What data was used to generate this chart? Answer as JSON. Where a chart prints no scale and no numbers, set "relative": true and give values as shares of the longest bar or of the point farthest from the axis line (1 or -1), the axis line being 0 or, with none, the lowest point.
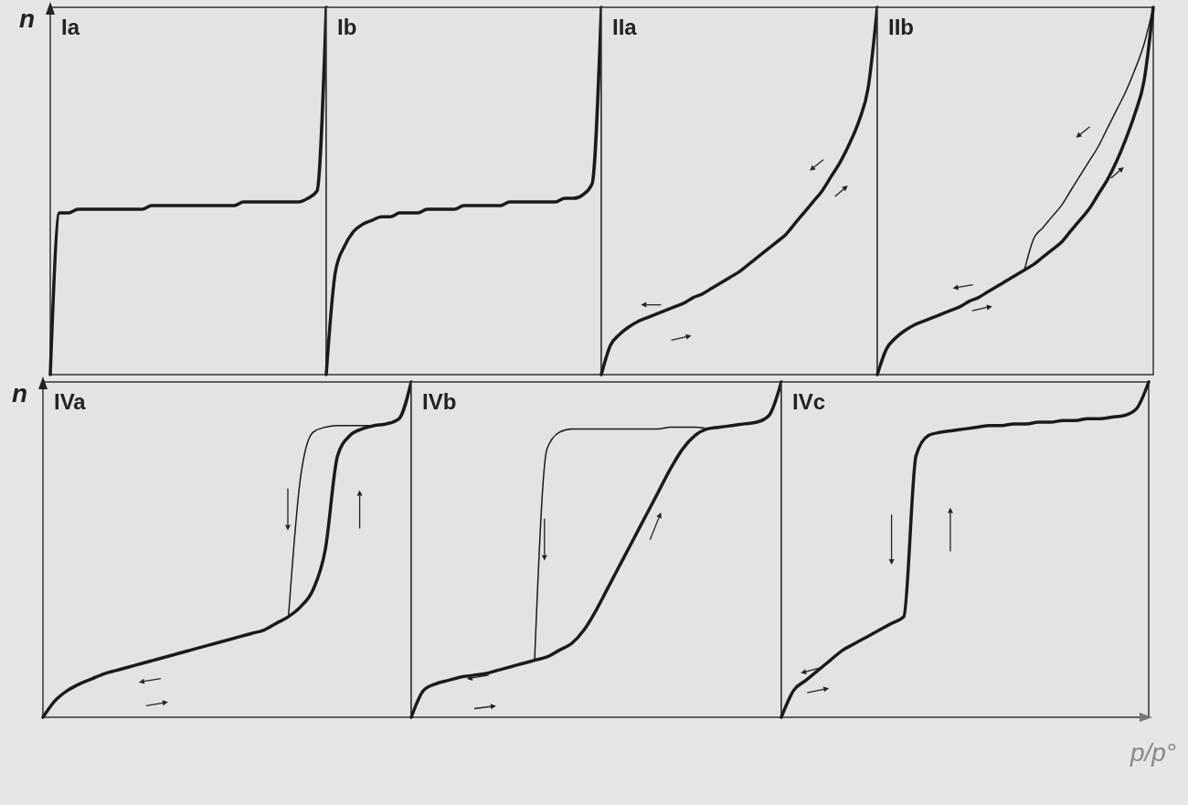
{
  "chart_data": [
    {
      "type": "line",
      "title": "Ia",
      "ylabel": "n",
      "relative": true,
      "categories": [
        null,
        null,
        null,
        null,
        null,
        null,
        null,
        null,
        null,
        null,
        null,
        null,
        null,
        null,
        null,
        null,
        null,
        null,
        null,
        null,
        null,
        null,
        null,
        null,
        null,
        null,
        null,
        null,
        null,
        null,
        null
      ],
      "series": [
        {
          "color": "#1a1a1a",
          "values": [
            0,
            0.44,
            0.44,
            0.45,
            0.45,
            0.45,
            0.45,
            0.45,
            0.45,
            0.45,
            0.45,
            0.46,
            0.46,
            0.46,
            0.46,
            0.46,
            0.46,
            0.46,
            0.46,
            0.46,
            0.46,
            0.47,
            0.47,
            0.47,
            0.47,
            0.47,
            0.47,
            0.47,
            0.48,
            0.5,
            1
          ]
        }
      ]
    },
    {
      "type": "line",
      "title": "Ib",
      "relative": true,
      "categories": [
        null,
        null,
        null,
        null,
        null,
        null,
        null,
        null,
        null,
        null,
        null,
        null,
        null,
        null,
        null,
        null,
        null,
        null,
        null,
        null,
        null,
        null,
        null,
        null,
        null,
        null,
        null,
        null,
        null,
        null,
        null
      ],
      "series": [
        {
          "color": "#1a1a1a",
          "values": [
            0,
            0.28,
            0.35,
            0.39,
            0.41,
            0.42,
            0.43,
            0.43,
            0.44,
            0.44,
            0.44,
            0.45,
            0.45,
            0.45,
            0.45,
            0.46,
            0.46,
            0.46,
            0.46,
            0.46,
            0.47,
            0.47,
            0.47,
            0.47,
            0.47,
            0.47,
            0.48,
            0.48,
            0.49,
            0.52,
            1
          ]
        }
      ]
    },
    {
      "type": "line",
      "title": "IIa",
      "relative": true,
      "categories": [
        null,
        null,
        null,
        null,
        null,
        null,
        null,
        null,
        null,
        null,
        null,
        null,
        null,
        null,
        null,
        null,
        null,
        null,
        null,
        null,
        null,
        null,
        null,
        null,
        null,
        null,
        null,
        null,
        null,
        null,
        null
      ],
      "series": [
        {
          "color": "#1a1a1a",
          "values": [
            0,
            0.08,
            0.11,
            0.13,
            0.145,
            0.155,
            0.165,
            0.175,
            0.185,
            0.195,
            0.21,
            0.22,
            0.235,
            0.25,
            0.265,
            0.28,
            0.3,
            0.32,
            0.34,
            0.36,
            0.38,
            0.41,
            0.44,
            0.47,
            0.5,
            0.54,
            0.58,
            0.63,
            0.69,
            0.78,
            1
          ]
        }
      ]
    },
    {
      "type": "line",
      "title": "IIb",
      "relative": true,
      "categories": [
        null,
        null,
        null,
        null,
        null,
        null,
        null,
        null,
        null,
        null,
        null,
        null,
        null,
        null,
        null,
        null,
        null,
        null,
        null,
        null,
        null,
        null,
        null,
        null,
        null,
        null,
        null,
        null,
        null,
        null,
        null
      ],
      "series": [
        {
          "color": "#1a1a1a",
          "values": [
            0,
            0.07,
            0.1,
            0.12,
            0.135,
            0.145,
            0.155,
            0.165,
            0.175,
            0.185,
            0.2,
            0.21,
            0.225,
            0.24,
            0.255,
            0.27,
            0.285,
            0.3,
            0.32,
            0.34,
            0.36,
            0.39,
            0.42,
            0.45,
            0.49,
            0.53,
            0.58,
            0.64,
            0.71,
            0.8,
            1
          ]
        },
        {
          "color": "#1a1a1a",
          "values": [
            null,
            null,
            null,
            null,
            null,
            null,
            null,
            null,
            null,
            null,
            null,
            null,
            null,
            null,
            null,
            null,
            0.285,
            0.37,
            0.4,
            0.43,
            0.46,
            0.5,
            0.54,
            0.58,
            0.62,
            0.67,
            0.72,
            0.77,
            0.83,
            0.9,
            1
          ]
        }
      ]
    },
    {
      "type": "line",
      "title": "IVa",
      "ylabel": "n",
      "relative": true,
      "categories": [
        null,
        null,
        null,
        null,
        null,
        null,
        null,
        null,
        null,
        null,
        null,
        null,
        null,
        null,
        null,
        null,
        null,
        null,
        null,
        null,
        null,
        null,
        null,
        null,
        null,
        null,
        null,
        null,
        null,
        null,
        null
      ],
      "series": [
        {
          "color": "#1a1a1a",
          "values": [
            0,
            0.05,
            0.08,
            0.1,
            0.115,
            0.13,
            0.14,
            0.15,
            0.16,
            0.17,
            0.18,
            0.19,
            0.2,
            0.21,
            0.22,
            0.23,
            0.24,
            0.25,
            0.26,
            0.28,
            0.3,
            0.33,
            0.38,
            0.5,
            0.78,
            0.84,
            0.86,
            0.87,
            0.875,
            0.89,
            1
          ]
        },
        {
          "color": "#1a1a1a",
          "values": [
            null,
            null,
            null,
            null,
            null,
            null,
            null,
            null,
            null,
            null,
            null,
            null,
            null,
            null,
            null,
            null,
            null,
            null,
            null,
            null,
            0.3,
            0.72,
            0.85,
            0.865,
            0.87,
            0.87,
            0.87,
            0.87,
            null,
            null,
            null
          ]
        }
      ]
    },
    {
      "type": "line",
      "title": "IVb",
      "relative": true,
      "categories": [
        null,
        null,
        null,
        null,
        null,
        null,
        null,
        null,
        null,
        null,
        null,
        null,
        null,
        null,
        null,
        null,
        null,
        null,
        null,
        null,
        null,
        null,
        null,
        null,
        null,
        null,
        null,
        null,
        null,
        null,
        null
      ],
      "series": [
        {
          "color": "#1a1a1a",
          "values": [
            0,
            0.08,
            0.1,
            0.11,
            0.12,
            0.125,
            0.13,
            0.14,
            0.15,
            0.16,
            0.17,
            0.18,
            0.2,
            0.22,
            0.26,
            0.32,
            0.39,
            0.46,
            0.53,
            0.6,
            0.67,
            0.74,
            0.8,
            0.84,
            0.86,
            0.865,
            0.87,
            0.875,
            0.88,
            0.9,
            1
          ]
        },
        {
          "color": "#1a1a1a",
          "values": [
            null,
            null,
            null,
            null,
            null,
            null,
            null,
            null,
            null,
            null,
            0.17,
            0.8,
            0.85,
            0.86,
            0.86,
            0.86,
            0.86,
            0.86,
            0.86,
            0.86,
            0.86,
            0.865,
            0.865,
            0.865,
            0.86,
            null,
            null,
            null,
            null,
            null,
            null
          ]
        }
      ]
    },
    {
      "type": "line",
      "title": "IVc",
      "xlabel": "p/p°",
      "relative": true,
      "categories": [
        null,
        null,
        null,
        null,
        null,
        null,
        null,
        null,
        null,
        null,
        null,
        null,
        null,
        null,
        null,
        null,
        null,
        null,
        null,
        null,
        null,
        null,
        null,
        null,
        null,
        null,
        null,
        null,
        null,
        null,
        null
      ],
      "series": [
        {
          "color": "#1a1a1a",
          "values": [
            0,
            0.08,
            0.11,
            0.14,
            0.17,
            0.2,
            0.22,
            0.24,
            0.26,
            0.28,
            0.3,
            0.78,
            0.84,
            0.85,
            0.855,
            0.86,
            0.865,
            0.87,
            0.87,
            0.875,
            0.875,
            0.88,
            0.88,
            0.885,
            0.885,
            0.89,
            0.89,
            0.895,
            0.9,
            0.92,
            1
          ]
        }
      ]
    }
  ]
}
